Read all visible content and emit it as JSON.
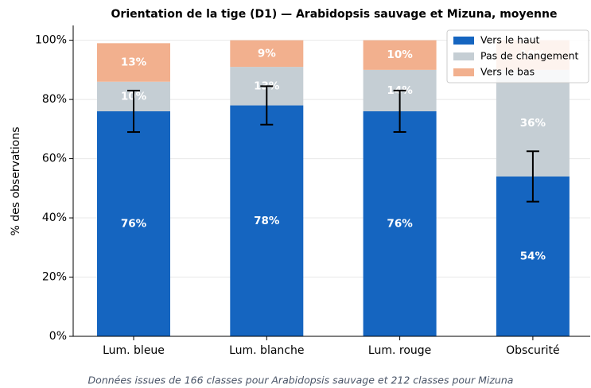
{
  "chart_data": {
    "type": "bar",
    "stacked": true,
    "title": "Orientation de la tige (D1) — Arabidopsis sauvage et Mizuna, moyenne",
    "ylabel": "% des observations",
    "caption": "Données issues de 166 classes pour Arabidopsis sauvage et 212 classes pour Mizuna",
    "categories": [
      "Lum. bleue",
      "Lum. blanche",
      "Lum. rouge",
      "Obscurité"
    ],
    "series": [
      {
        "name": "Vers le haut",
        "color": "#1565c0",
        "values": [
          76,
          78,
          76,
          54
        ],
        "value_labels": [
          "76%",
          "78%",
          "76%",
          "54%"
        ],
        "errors": [
          7,
          6.5,
          7,
          8.5
        ]
      },
      {
        "name": "Pas de changement",
        "color": "#c5ced4",
        "values": [
          10,
          13,
          14,
          36
        ],
        "value_labels": [
          "10%",
          "13%",
          "14%",
          "36%"
        ]
      },
      {
        "name": "Vers le bas",
        "color": "#f2b08e",
        "values": [
          13,
          9,
          10,
          10
        ],
        "value_labels": [
          "13%",
          "9%",
          "10%",
          "10%"
        ]
      }
    ],
    "ylim": [
      0,
      105
    ],
    "yticks": [
      {
        "value": 0,
        "label": "0%"
      },
      {
        "value": 20,
        "label": "20%"
      },
      {
        "value": 40,
        "label": "40%"
      },
      {
        "value": 60,
        "label": "60%"
      },
      {
        "value": 80,
        "label": "80%"
      },
      {
        "value": 100,
        "label": "100%"
      }
    ],
    "grid": true,
    "legend": "upper right"
  }
}
